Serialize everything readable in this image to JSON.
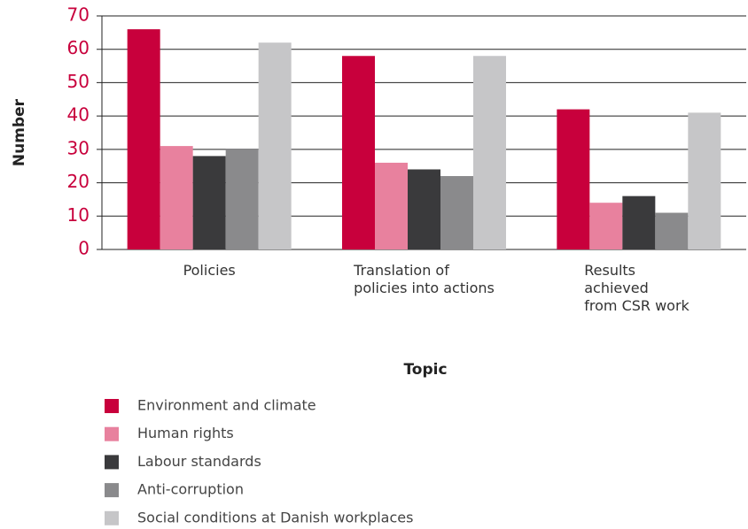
{
  "chart_data": {
    "type": "bar",
    "xlabel": "Topic",
    "ylabel": "Number",
    "categories": [
      "Policies",
      "Translation of\npolicies into actions",
      "Results achieved\nfrom CSR work"
    ],
    "series": [
      {
        "name": "Environment and climate",
        "color": "#c8003c",
        "values": [
          66,
          58,
          42
        ]
      },
      {
        "name": "Human rights",
        "color": "#e8819e",
        "values": [
          31,
          26,
          14
        ]
      },
      {
        "name": "Labour standards",
        "color": "#3a3a3c",
        "values": [
          28,
          24,
          16
        ]
      },
      {
        "name": "Anti-corruption",
        "color": "#8a8a8c",
        "values": [
          30,
          22,
          11
        ]
      },
      {
        "name": "Social conditions at Danish workplaces",
        "color": "#c6c6c8",
        "values": [
          62,
          58,
          41
        ]
      }
    ],
    "ylim": [
      0,
      70
    ],
    "yticks": [
      0,
      10,
      20,
      30,
      40,
      50,
      60,
      70
    ],
    "grid": true,
    "tick_color": "#c8003c"
  }
}
